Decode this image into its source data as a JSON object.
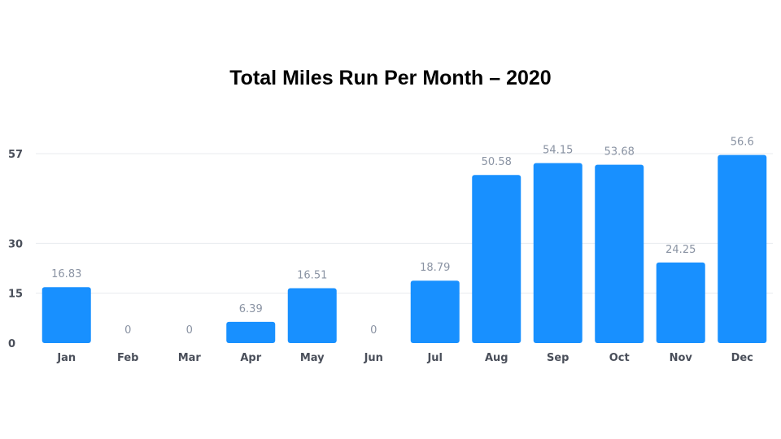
{
  "chart_data": {
    "type": "bar",
    "title": "Total Miles Run Per Month – 2020",
    "xlabel": "",
    "ylabel": "",
    "categories": [
      "Jan",
      "Feb",
      "Mar",
      "Apr",
      "May",
      "Jun",
      "Jul",
      "Aug",
      "Sep",
      "Oct",
      "Nov",
      "Dec"
    ],
    "values": [
      16.83,
      0,
      0,
      6.39,
      16.51,
      0,
      18.79,
      50.58,
      54.15,
      53.68,
      24.25,
      56.6
    ],
    "data_labels": [
      "16.83",
      "0",
      "0",
      "6.39",
      "16.51",
      "0",
      "18.79",
      "50.58",
      "54.15",
      "53.68",
      "24.25",
      "56.6"
    ],
    "yticks": [
      0,
      15,
      30,
      57
    ],
    "ylim": [
      0,
      57
    ],
    "grid": true,
    "legend": "none",
    "bar_color": "#1890ff",
    "grid_color": "#e8ebef"
  }
}
